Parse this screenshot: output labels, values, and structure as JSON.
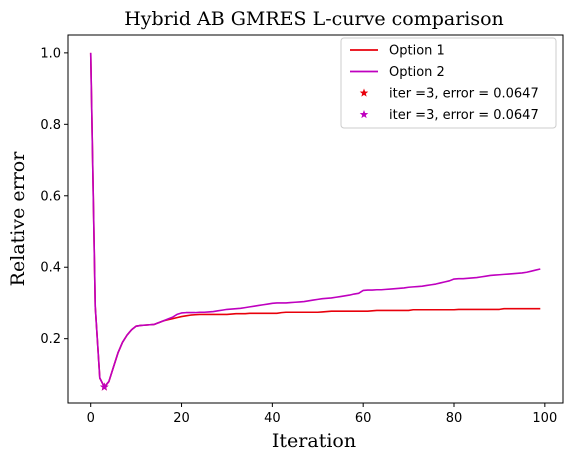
{
  "chart_data": {
    "type": "line",
    "title": "Hybrid AB GMRES L-curve comparison",
    "xlabel": "Iteration",
    "ylabel": "Relative error",
    "xlim": [
      -5,
      104
    ],
    "ylim": [
      0.02,
      1.05
    ],
    "xticks": [
      0,
      20,
      40,
      60,
      80,
      100
    ],
    "yticks": [
      0.2,
      0.4,
      0.6,
      0.8,
      1.0
    ],
    "xtick_labels": [
      "0",
      "20",
      "40",
      "60",
      "80",
      "100"
    ],
    "ytick_labels": [
      "0.2",
      "0.4",
      "0.6",
      "0.8",
      "1.0"
    ],
    "grid": false,
    "legend_position": "top-right",
    "x": [
      0,
      1,
      2,
      3,
      4,
      5,
      6,
      7,
      8,
      9,
      10,
      11,
      12,
      13,
      14,
      15,
      16,
      17,
      18,
      19,
      20,
      21,
      22,
      23,
      24,
      25,
      26,
      27,
      28,
      29,
      30,
      31,
      32,
      33,
      34,
      35,
      36,
      37,
      38,
      39,
      40,
      41,
      42,
      43,
      44,
      45,
      46,
      47,
      48,
      49,
      50,
      51,
      52,
      53,
      54,
      55,
      56,
      57,
      58,
      59,
      60,
      61,
      62,
      63,
      64,
      65,
      66,
      67,
      68,
      69,
      70,
      71,
      72,
      73,
      74,
      75,
      76,
      77,
      78,
      79,
      80,
      81,
      82,
      83,
      84,
      85,
      86,
      87,
      88,
      89,
      90,
      91,
      92,
      93,
      94,
      95,
      96,
      97,
      98,
      99
    ],
    "series": [
      {
        "name": "Option 1",
        "color": "#e8000b",
        "marker_label": "iter =3, error = 0.0647",
        "values": [
          1.0,
          0.29,
          0.09,
          0.0647,
          0.08,
          0.12,
          0.16,
          0.19,
          0.21,
          0.225,
          0.235,
          0.237,
          0.238,
          0.239,
          0.24,
          0.245,
          0.25,
          0.253,
          0.256,
          0.259,
          0.262,
          0.264,
          0.266,
          0.267,
          0.268,
          0.268,
          0.268,
          0.268,
          0.268,
          0.268,
          0.268,
          0.269,
          0.27,
          0.27,
          0.27,
          0.271,
          0.271,
          0.271,
          0.271,
          0.271,
          0.271,
          0.271,
          0.273,
          0.274,
          0.274,
          0.274,
          0.274,
          0.274,
          0.274,
          0.274,
          0.274,
          0.275,
          0.276,
          0.277,
          0.277,
          0.277,
          0.277,
          0.277,
          0.277,
          0.277,
          0.277,
          0.277,
          0.278,
          0.279,
          0.279,
          0.279,
          0.279,
          0.279,
          0.279,
          0.279,
          0.279,
          0.281,
          0.281,
          0.281,
          0.281,
          0.281,
          0.281,
          0.281,
          0.281,
          0.281,
          0.281,
          0.282,
          0.282,
          0.282,
          0.282,
          0.282,
          0.282,
          0.282,
          0.282,
          0.282,
          0.282,
          0.284,
          0.284,
          0.284,
          0.284,
          0.284,
          0.284,
          0.284,
          0.284,
          0.284
        ]
      },
      {
        "name": "Option 2",
        "color": "#bf00bf",
        "marker_label": "iter =3, error = 0.0647",
        "values": [
          1.0,
          0.29,
          0.09,
          0.0647,
          0.08,
          0.12,
          0.16,
          0.19,
          0.21,
          0.225,
          0.235,
          0.237,
          0.238,
          0.239,
          0.24,
          0.245,
          0.25,
          0.255,
          0.26,
          0.268,
          0.272,
          0.273,
          0.273,
          0.273,
          0.274,
          0.274,
          0.275,
          0.276,
          0.278,
          0.28,
          0.282,
          0.283,
          0.284,
          0.285,
          0.287,
          0.289,
          0.291,
          0.293,
          0.295,
          0.297,
          0.299,
          0.3,
          0.3,
          0.3,
          0.301,
          0.302,
          0.303,
          0.304,
          0.306,
          0.308,
          0.31,
          0.312,
          0.313,
          0.314,
          0.316,
          0.318,
          0.32,
          0.322,
          0.325,
          0.327,
          0.335,
          0.336,
          0.336,
          0.337,
          0.337,
          0.338,
          0.339,
          0.34,
          0.341,
          0.342,
          0.344,
          0.345,
          0.346,
          0.347,
          0.349,
          0.351,
          0.353,
          0.356,
          0.359,
          0.362,
          0.367,
          0.368,
          0.368,
          0.369,
          0.37,
          0.371,
          0.373,
          0.375,
          0.377,
          0.378,
          0.379,
          0.38,
          0.381,
          0.382,
          0.383,
          0.384,
          0.386,
          0.389,
          0.392,
          0.395
        ]
      }
    ],
    "markers": [
      {
        "x": 3,
        "y": 0.0647,
        "color": "#e8000b",
        "label": "iter =3, error = 0.0647"
      },
      {
        "x": 3,
        "y": 0.0647,
        "color": "#bf00bf",
        "label": "iter =3, error = 0.0647"
      }
    ],
    "legend": [
      {
        "kind": "line",
        "label": "Option 1",
        "color": "#e8000b"
      },
      {
        "kind": "line",
        "label": "Option 2",
        "color": "#bf00bf"
      },
      {
        "kind": "star",
        "label": "iter =3, error = 0.0647",
        "color": "#e8000b"
      },
      {
        "kind": "star",
        "label": "iter =3, error = 0.0647",
        "color": "#bf00bf"
      }
    ]
  }
}
